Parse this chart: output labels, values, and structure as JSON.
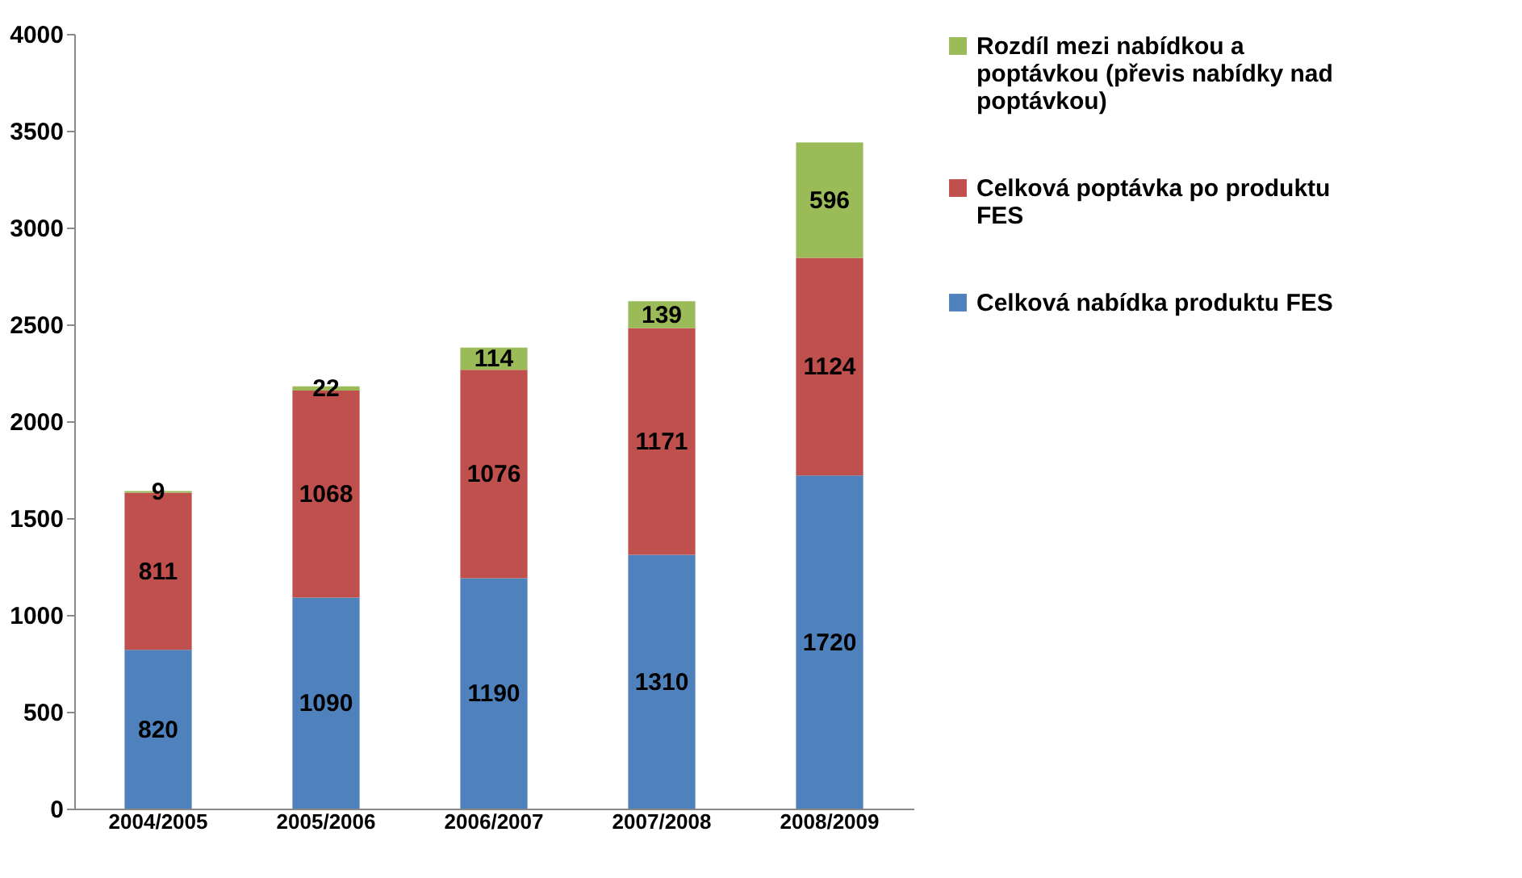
{
  "chart_data": {
    "type": "bar",
    "stacked": true,
    "categories": [
      "2004/2005",
      "2005/2006",
      "2006/2007",
      "2007/2008",
      "2008/2009"
    ],
    "series": [
      {
        "name": "Celková nabídka produktu FES",
        "color": "#4f81bd",
        "values": [
          820,
          1090,
          1190,
          1310,
          1720
        ]
      },
      {
        "name": "Celková poptávka  po produktu FES",
        "color": "#c0504d",
        "values": [
          811,
          1068,
          1076,
          1171,
          1124
        ]
      },
      {
        "name": "Rozdíl mezi nabídkou a poptávkou (převis nabídky nad poptávkou)",
        "color": "#9bbb59",
        "values": [
          9,
          22,
          114,
          139,
          596
        ]
      }
    ],
    "ylim": [
      0,
      4000
    ],
    "yticks": [
      0,
      500,
      1000,
      1500,
      2000,
      2500,
      3000,
      3500,
      4000
    ],
    "grid": false,
    "legend": "right",
    "data_labels": true
  }
}
